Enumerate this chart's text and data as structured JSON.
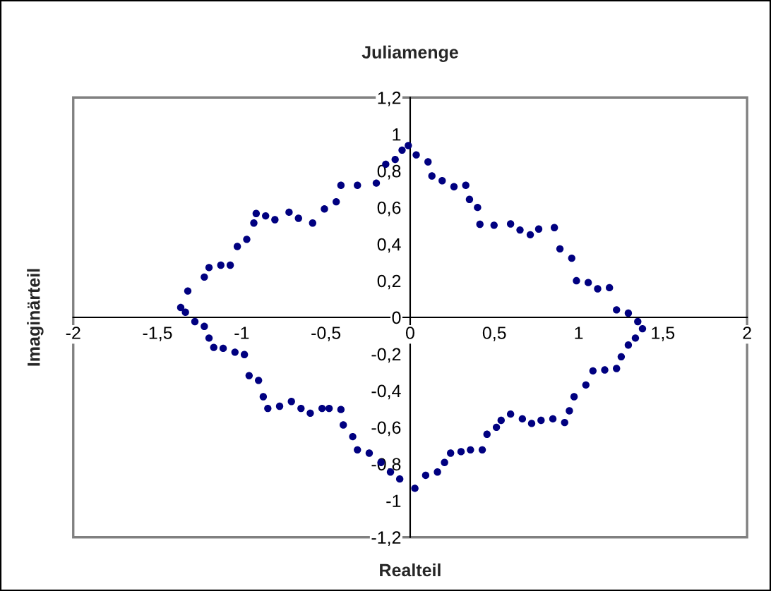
{
  "chart_data": {
    "type": "scatter",
    "title": "Juliamenge",
    "xlabel": "Realteil",
    "ylabel": "Imaginärteil",
    "marker": "circle",
    "grid": false,
    "xlim": [
      -2,
      2
    ],
    "ylim": [
      -1.2,
      1.2
    ],
    "xticks": [
      -2,
      {
        "value": -1.5,
        "label": "-1,5"
      },
      -1,
      {
        "value": -0.5,
        "label": "-0,5"
      },
      0,
      {
        "value": 0.5,
        "label": "0,5"
      },
      1,
      {
        "value": 1.5,
        "label": "1,5"
      },
      2
    ],
    "yticks": [
      {
        "value": -1.2,
        "label": "-1,2"
      },
      -1,
      {
        "value": -0.8,
        "label": "-0,8"
      },
      {
        "value": -0.6,
        "label": "-0,6"
      },
      {
        "value": -0.4,
        "label": "-0,4"
      },
      {
        "value": -0.2,
        "label": "-0,2"
      },
      0,
      {
        "value": 0.2,
        "label": "0,2"
      },
      {
        "value": 0.4,
        "label": "0,4"
      },
      {
        "value": 0.6,
        "label": "0,6"
      },
      {
        "value": 0.8,
        "label": "0,8"
      },
      1,
      {
        "value": 1.2,
        "label": "1,2"
      }
    ],
    "series": [
      {
        "color": "#000080",
        "x": [
          -1.362,
          -1.32,
          -1.222,
          -1.194,
          -1.124,
          -1.068,
          -1.026,
          -0.97,
          -0.928,
          -0.914,
          -0.858,
          -0.803,
          -0.719,
          -0.663,
          -0.579,
          -0.509,
          -0.439,
          -0.411,
          -0.313,
          -0.201,
          -0.145,
          -0.089,
          -0.048,
          -0.011,
          0.036,
          0.106,
          0.129,
          0.19,
          0.26,
          0.33,
          0.352,
          0.4,
          0.414,
          0.498,
          0.596,
          0.652,
          0.713,
          0.763,
          0.856,
          0.889,
          0.959,
          0.987,
          1.057,
          1.113,
          1.183,
          1.225,
          1.295,
          1.351,
          1.379,
          1.337,
          1.295,
          1.253,
          1.225,
          1.155,
          1.085,
          1.043,
          0.973,
          0.945,
          0.917,
          0.847,
          0.777,
          0.721,
          0.666,
          0.596,
          0.54,
          0.512,
          0.456,
          0.428,
          0.358,
          0.302,
          0.24,
          0.204,
          0.162,
          0.092,
          0.028,
          -0.062,
          -0.117,
          -0.173,
          -0.243,
          -0.313,
          -0.341,
          -0.397,
          -0.411,
          -0.481,
          -0.523,
          -0.593,
          -0.648,
          -0.705,
          -0.775,
          -0.845,
          -0.872,
          -0.9,
          -0.956,
          -0.984,
          -1.04,
          -1.11,
          -1.166,
          -1.194,
          -1.222,
          -1.278,
          -1.334
        ],
        "values": [
          0.054,
          0.144,
          0.22,
          0.272,
          0.285,
          0.285,
          0.387,
          0.426,
          0.515,
          0.567,
          0.554,
          0.533,
          0.574,
          0.541,
          0.515,
          0.592,
          0.631,
          0.721,
          0.721,
          0.733,
          0.836,
          0.862,
          0.913,
          0.938,
          0.887,
          0.849,
          0.772,
          0.746,
          0.713,
          0.721,
          0.644,
          0.6,
          0.508,
          0.503,
          0.51,
          0.477,
          0.451,
          0.482,
          0.49,
          0.374,
          0.323,
          0.2,
          0.19,
          0.156,
          0.162,
          0.041,
          0.023,
          -0.023,
          -0.062,
          -0.113,
          -0.151,
          -0.215,
          -0.279,
          -0.287,
          -0.292,
          -0.369,
          -0.433,
          -0.51,
          -0.574,
          -0.554,
          -0.562,
          -0.579,
          -0.554,
          -0.528,
          -0.562,
          -0.6,
          -0.638,
          -0.723,
          -0.723,
          -0.733,
          -0.741,
          -0.792,
          -0.844,
          -0.862,
          -0.933,
          -0.882,
          -0.844,
          -0.792,
          -0.741,
          -0.723,
          -0.651,
          -0.587,
          -0.503,
          -0.497,
          -0.497,
          -0.523,
          -0.497,
          -0.459,
          -0.485,
          -0.497,
          -0.433,
          -0.344,
          -0.318,
          -0.203,
          -0.19,
          -0.169,
          -0.164,
          -0.113,
          -0.049,
          -0.023,
          0.028
        ]
      }
    ]
  }
}
